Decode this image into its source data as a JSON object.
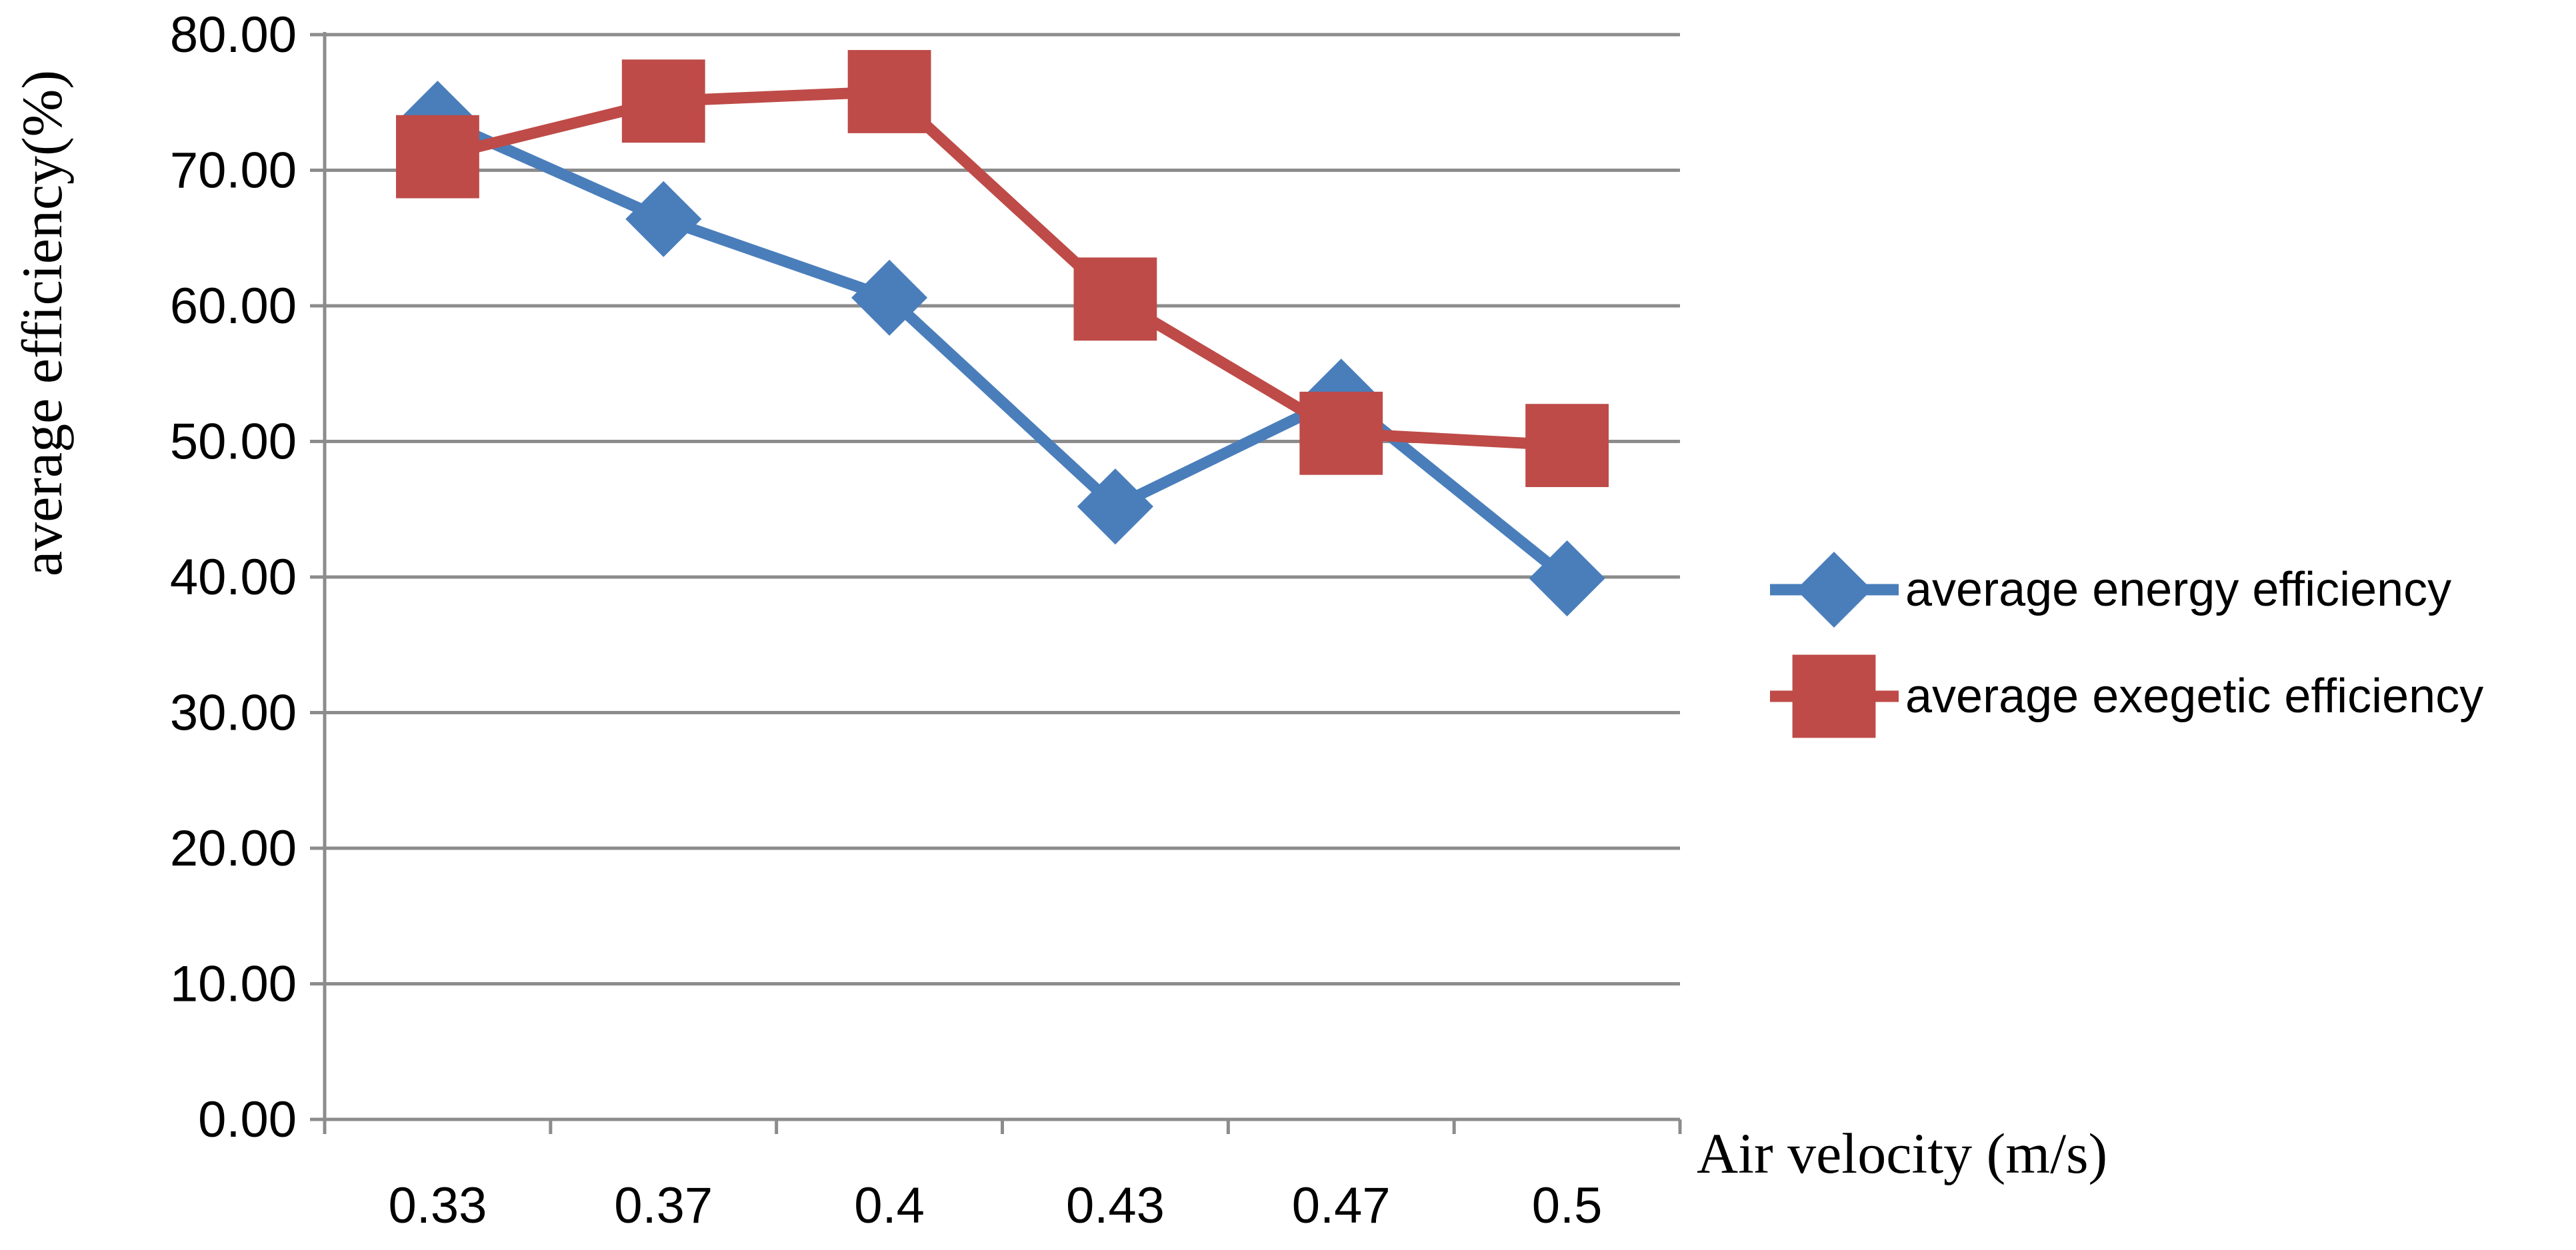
{
  "chart_data": {
    "type": "line",
    "title": "",
    "xlabel": "Air velocity (m/s)",
    "ylabel": "average efficiency(%)",
    "categories": [
      "0.33",
      "0.37",
      "0.4",
      "0.43",
      "0.47",
      "0.5"
    ],
    "y_ticks": [
      "0.00",
      "10.00",
      "20.00",
      "30.00",
      "40.00",
      "50.00",
      "60.00",
      "70.00",
      "80.00"
    ],
    "ylim": [
      0,
      80
    ],
    "grid": "horizontal",
    "legend_position": "right",
    "series": [
      {
        "name": "average energy efficiency",
        "color": "#4A7EBB",
        "marker": "diamond",
        "values": [
          73.8,
          66.4,
          60.6,
          45.2,
          53.3,
          39.9
        ]
      },
      {
        "name": "average exegetic efficiency",
        "color": "#BE4B48",
        "marker": "square",
        "values": [
          71.0,
          75.1,
          75.8,
          60.5,
          50.6,
          49.7
        ]
      }
    ]
  }
}
